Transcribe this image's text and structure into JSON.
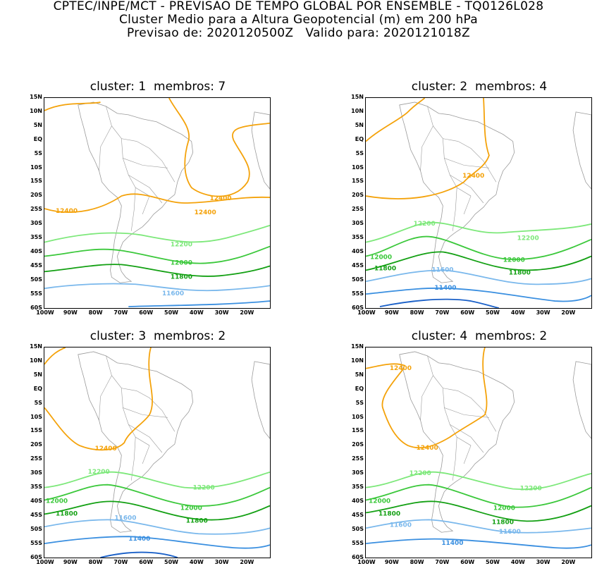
{
  "header": {
    "line1": "CPTEC/INPE/MCT - PREVISAO DE TEMPO GLOBAL POR ENSEMBLE - TQ0126L028",
    "line2": "Cluster Medio para a Altura Geopotencial (m) em 200 hPa",
    "line3": "Previsao de: 2020120500Z   Valido para: 2020121018Z"
  },
  "lat_labels": [
    "15N",
    "10N",
    "5N",
    "EQ",
    "5S",
    "10S",
    "15S",
    "20S",
    "25S",
    "30S",
    "35S",
    "40S",
    "45S",
    "50S",
    "55S",
    "60S"
  ],
  "lon_labels": [
    "100W",
    "90W",
    "80W",
    "70W",
    "60W",
    "50W",
    "40W",
    "30W",
    "20W"
  ],
  "colors": {
    "c12400": "#f4a20a",
    "c12200": "#7de87a",
    "c12000": "#3bc83b",
    "c11800": "#13a013",
    "c11600": "#7ab8ec",
    "c11400": "#3a8fe0",
    "c11200": "#1a60c8",
    "map": "#9a9a9a"
  },
  "panels": [
    {
      "id": "1",
      "title": "cluster: 1  membros: 7",
      "contour_labels": {
        "a": "12400",
        "b": "12400",
        "c": "12400",
        "d": "12200",
        "e": "12000",
        "f": "11800",
        "g": "11600"
      }
    },
    {
      "id": "2",
      "title": "cluster: 2  membros: 4",
      "contour_labels": {
        "a": "12400",
        "d": "12200",
        "d2": "12200",
        "e": "12000",
        "e2": "12000",
        "f": "11800",
        "f2": "11800",
        "g": "11600",
        "h": "11400"
      }
    },
    {
      "id": "3",
      "title": "cluster: 3  membros: 2",
      "contour_labels": {
        "a": "12400",
        "d": "12200",
        "d2": "12200",
        "e": "12000",
        "e2": "12000",
        "f": "11800",
        "f2": "11800",
        "g": "11600",
        "h": "11400"
      }
    },
    {
      "id": "4",
      "title": "cluster: 4  membros: 2",
      "contour_labels": {
        "a": "12400",
        "a2": "12400",
        "d": "12200",
        "d2": "12200",
        "e": "12000",
        "e2": "12000",
        "f": "11800",
        "f2": "11800",
        "g": "11600",
        "g2": "11600",
        "h": "11400"
      }
    }
  ]
}
